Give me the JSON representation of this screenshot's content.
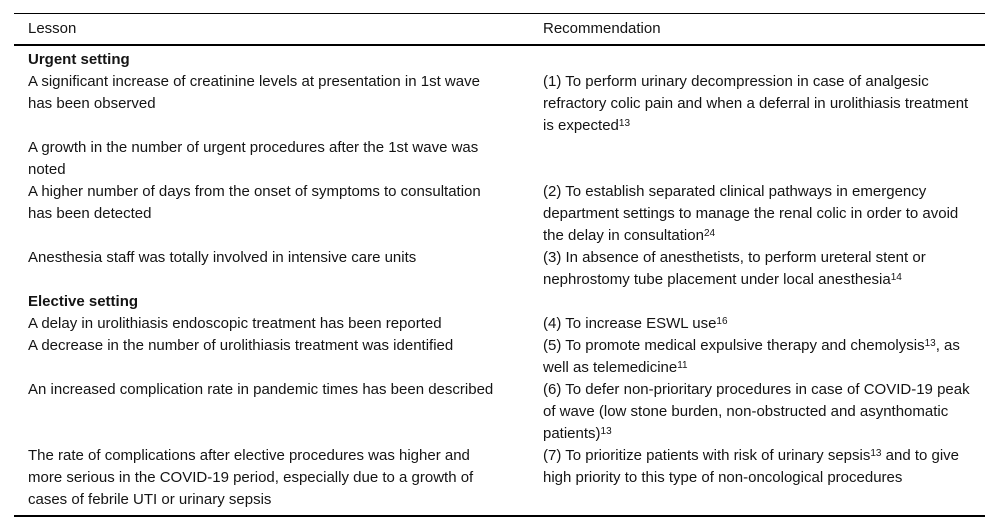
{
  "table": {
    "columns": [
      {
        "label": "Lesson"
      },
      {
        "label": "Recommendation"
      }
    ],
    "sections": [
      {
        "title": "Urgent setting",
        "rows": [
          {
            "lesson": "A significant increase of creatinine levels at presentation in 1st wave has been observed",
            "recommendation": "(1) To perform urinary decompression in case of analgesic refractory colic pain and when a deferral in urolithiasis treatment is expected^{13}"
          },
          {
            "lesson": "A growth in the number of urgent procedures after the 1st wave was noted",
            "recommendation": ""
          },
          {
            "lesson": "A higher number of days from the onset of symptoms to consultation has been detected",
            "recommendation": "(2) To establish separated clinical pathways in emergency department settings to manage the renal colic in order to avoid the delay in consultation^{24}"
          },
          {
            "lesson": "Anesthesia staff was totally involved in intensive care units",
            "recommendation": "(3) In absence of anesthetists, to perform ureteral stent or nephrostomy tube placement under local anesthesia^{14}"
          }
        ]
      },
      {
        "title": "Elective setting",
        "rows": [
          {
            "lesson": "A delay in urolithiasis endoscopic treatment has been reported",
            "recommendation": "(4) To increase ESWL use^{16}"
          },
          {
            "lesson": "A decrease in the number of urolithiasis treatment was identified",
            "recommendation": "(5) To promote medical expulsive therapy and chemolysis^{13}, as well as telemedicine^{11}"
          },
          {
            "lesson": "An increased complication rate in pandemic times has been described",
            "recommendation": "(6) To defer non-prioritary procedures in case of COVID-19 peak of wave (low stone burden, non-obstructed and asynthomatic patients)^{13}"
          },
          {
            "lesson": "The rate of complications after elective procedures was higher and more serious in the COVID-19 period, especially due to a growth of cases of febrile UTI or urinary sepsis",
            "recommendation": "(7) To prioritize patients with risk of urinary sepsis^{13} and to give high priority to this type of non-oncological procedures"
          }
        ]
      }
    ]
  }
}
